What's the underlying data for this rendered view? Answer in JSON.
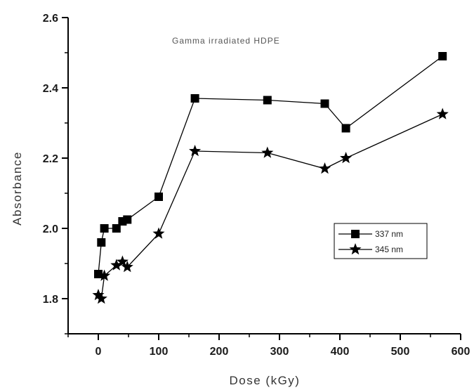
{
  "chart_data": {
    "type": "line",
    "title": "Gamma irradiated HDPE",
    "xlabel": "Dose (kGy)",
    "ylabel": "Absorbance",
    "xlim": [
      -50,
      600
    ],
    "ylim": [
      1.7,
      2.6
    ],
    "x_ticks": [
      0,
      100,
      200,
      300,
      400,
      500,
      600
    ],
    "x_tick_labels": [
      "0",
      "100",
      "200",
      "300",
      "400",
      "500",
      "600"
    ],
    "y_ticks": [
      1.8,
      2.0,
      2.2,
      2.4,
      2.6
    ],
    "y_tick_labels": [
      "1.8",
      "2.0",
      "2.2",
      "2.4",
      "2.6"
    ],
    "legend_position": "middle-right",
    "grid": false,
    "series": [
      {
        "name": "337 nm",
        "marker": "square",
        "color": "#000000",
        "points": [
          {
            "x": 0,
            "y": 1.87
          },
          {
            "x": 5,
            "y": 1.96
          },
          {
            "x": 10,
            "y": 2.0
          },
          {
            "x": 30,
            "y": 2.0
          },
          {
            "x": 40,
            "y": 2.02
          },
          {
            "x": 48,
            "y": 2.025
          },
          {
            "x": 100,
            "y": 2.09
          },
          {
            "x": 160,
            "y": 2.37
          },
          {
            "x": 280,
            "y": 2.365
          },
          {
            "x": 375,
            "y": 2.355
          },
          {
            "x": 410,
            "y": 2.285
          },
          {
            "x": 570,
            "y": 2.49
          }
        ]
      },
      {
        "name": "345 nm",
        "marker": "star",
        "color": "#000000",
        "points": [
          {
            "x": 0,
            "y": 1.81
          },
          {
            "x": 5,
            "y": 1.8
          },
          {
            "x": 10,
            "y": 1.865
          },
          {
            "x": 30,
            "y": 1.895
          },
          {
            "x": 40,
            "y": 1.905
          },
          {
            "x": 48,
            "y": 1.89
          },
          {
            "x": 100,
            "y": 1.985
          },
          {
            "x": 160,
            "y": 2.22
          },
          {
            "x": 280,
            "y": 2.215
          },
          {
            "x": 375,
            "y": 2.17
          },
          {
            "x": 410,
            "y": 2.2
          },
          {
            "x": 570,
            "y": 2.325
          }
        ]
      }
    ]
  }
}
